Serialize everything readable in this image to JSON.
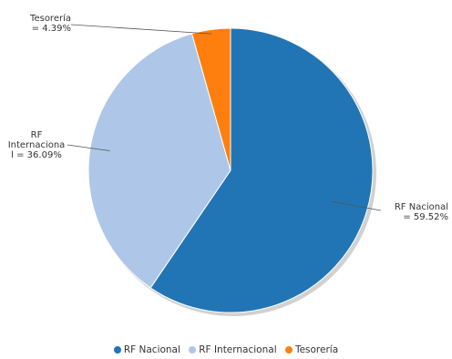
{
  "chart_data": {
    "type": "pie",
    "categories": [
      "RF Nacional",
      "RF Internacional",
      "Tesorería"
    ],
    "values": [
      59.52,
      36.09,
      4.39
    ],
    "colors": [
      "#2275B5",
      "#AEC7E8",
      "#FF7F0E"
    ],
    "data_labels": {
      "rf_nacional": [
        "RF Nacional",
        "= 59.52%"
      ],
      "rf_internacional": [
        "RF",
        "Internaciona",
        "l = 36.09%"
      ],
      "tesoreria": [
        "Tesorería",
        "= 4.39%"
      ]
    },
    "legend": [
      "RF Nacional",
      "RF Internacional",
      "Tesorería"
    ],
    "legend_placement": "bottom"
  }
}
